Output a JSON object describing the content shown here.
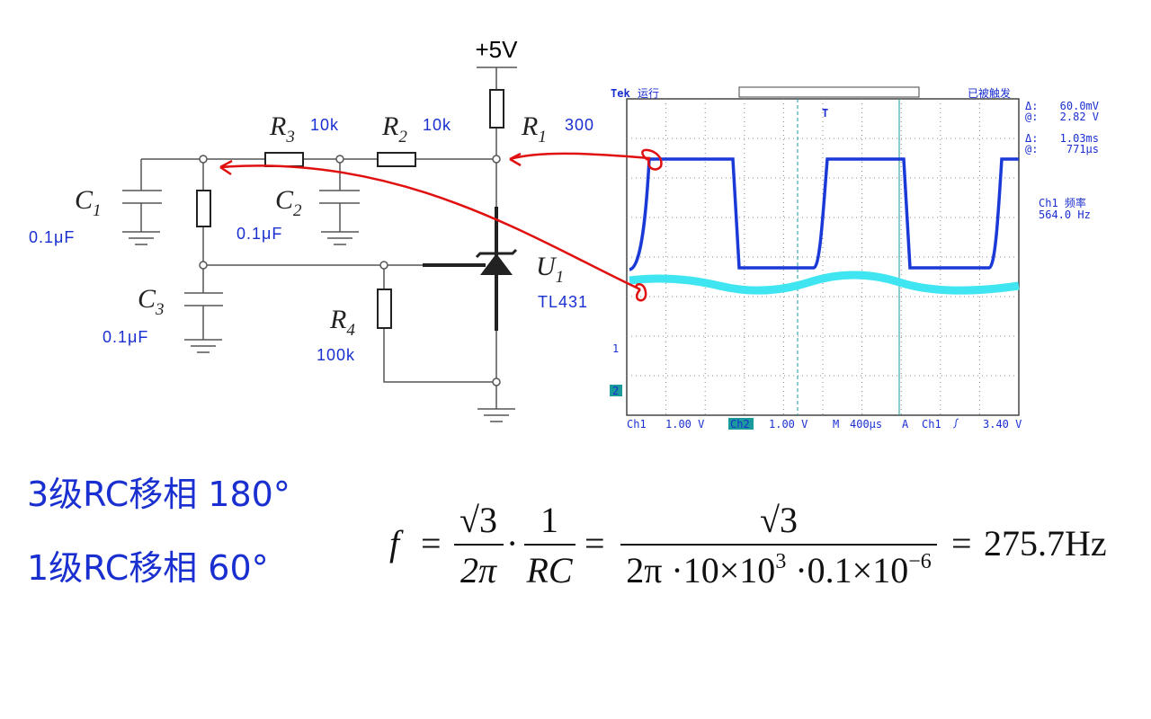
{
  "circuit": {
    "supply": "+5V",
    "components": [
      {
        "symbol": "R",
        "index": "3",
        "value": "10k"
      },
      {
        "symbol": "R",
        "index": "2",
        "value": "10k"
      },
      {
        "symbol": "R",
        "index": "1",
        "value": "300"
      },
      {
        "symbol": "C",
        "index": "1",
        "value": "0.1μF"
      },
      {
        "symbol": "C",
        "index": "2",
        "value": "0.1μF"
      },
      {
        "symbol": "C",
        "index": "3",
        "value": "0.1μF"
      },
      {
        "symbol": "R",
        "index": "4",
        "value": "100k"
      },
      {
        "symbol": "U",
        "index": "1",
        "value": "TL431"
      }
    ]
  },
  "oscilloscope": {
    "brand": "Tek",
    "state": "运行",
    "trigger_state": "已被触发",
    "cursors": [
      {
        "label": "Δ:",
        "value": "60.0mV"
      },
      {
        "label": "@:",
        "value": "2.82 V"
      },
      {
        "label": "Δ:",
        "value": "1.03ms"
      },
      {
        "label": "@:",
        "value": "771μs"
      }
    ],
    "measurement": {
      "label": "Ch1 频率",
      "value": "564.0 Hz"
    },
    "channel_markers": [
      "1",
      "2"
    ],
    "trigger_marker": "T",
    "footer": [
      "Ch1",
      "1.00 V",
      "Ch2",
      "1.00 V",
      "M",
      "400μs",
      "A",
      "Ch1",
      "3.40 V"
    ]
  },
  "notes": [
    "3级RC移相 180°",
    "1级RC移相 60°"
  ],
  "formula": {
    "lhs": "f",
    "eq": "=",
    "dot": "·",
    "frac1": {
      "num": "√3",
      "den": "2π"
    },
    "frac2": {
      "num": "1",
      "den": "RC"
    },
    "frac3": {
      "num": "√3",
      "den": [
        "2π ·10×10",
        "3",
        " ·0.1×10",
        "−6"
      ]
    },
    "result": "275.7Hz"
  }
}
